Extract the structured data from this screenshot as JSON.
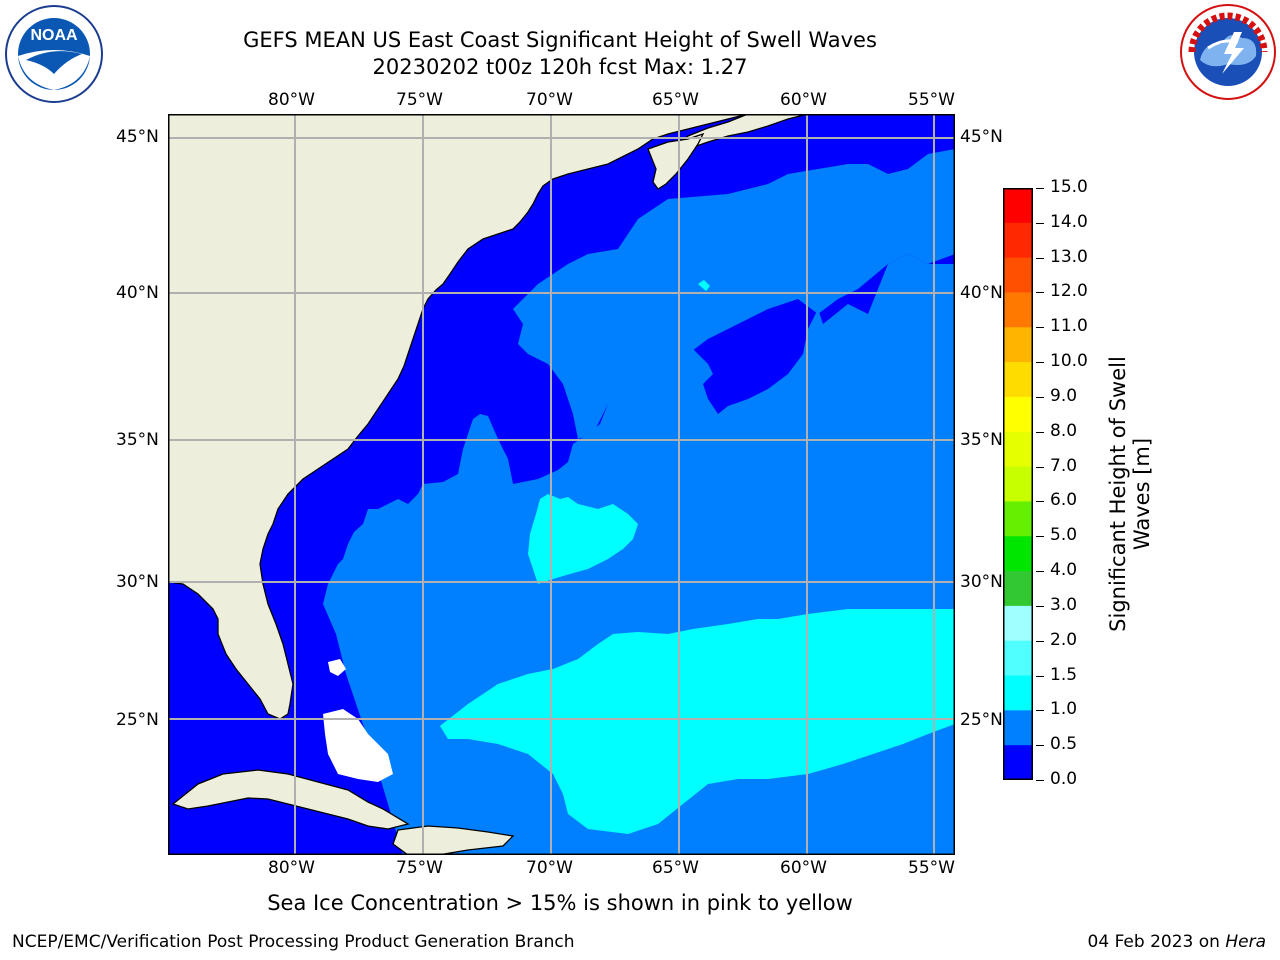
{
  "header": {
    "title_line1": "GEFS MEAN US East Coast Significant Height of Swell Waves",
    "title_line2": "20230202 t00z 120h fcst   Max: 1.27"
  },
  "logos": {
    "left": {
      "name": "noaa-logo",
      "text": "NOAA",
      "ring_text": "NATIONAL OCEANIC AND ATMOSPHERIC ADMINISTRATION · U.S. DEPARTMENT OF COMMERCE"
    },
    "right": {
      "name": "nws-logo",
      "ring_text": "NATIONAL WEATHER SERVICE"
    }
  },
  "map": {
    "lon_labels": [
      "80°W",
      "75°W",
      "70°W",
      "65°W",
      "60°W",
      "55°W"
    ],
    "lat_labels": [
      "45°N",
      "40°N",
      "35°N",
      "30°N",
      "25°N"
    ],
    "colors": {
      "land": "#eeeedd",
      "ocean_0_05": "#0000ff",
      "ocean_05_10": "#0080ff",
      "ocean_10_15": "#00ffff",
      "grid": "#b0b0b0",
      "coast": "#000000"
    }
  },
  "colorbar": {
    "title_line1": "Significant Height of Swell",
    "title_line2": "Waves [m]",
    "levels": [
      "15.0",
      "14.0",
      "13.0",
      "12.0",
      "11.0",
      "10.0",
      "9.0",
      "8.0",
      "7.0",
      "6.0",
      "5.0",
      "4.0",
      "3.0",
      "2.0",
      "1.5",
      "1.0",
      "0.5",
      "0.0"
    ],
    "colors_top_to_bottom": [
      "#ff0000",
      "#ff2800",
      "#ff5000",
      "#ff7800",
      "#ff9600",
      "#ffb400",
      "#ffdc00",
      "#ffff00",
      "#e6ff00",
      "#c8ff00",
      "#64f000",
      "#00e600",
      "#32c832",
      "#64f08c",
      "#a0ffff",
      "#50ffff",
      "#00ffff",
      "#0080ff",
      "#0000ff"
    ]
  },
  "notes": {
    "sea_ice": "Sea Ice Concentration > 15% is shown in pink to yellow"
  },
  "footer": {
    "left": "NCEP/EMC/Verification Post Processing Product Generation Branch",
    "right_prefix": "04 Feb 2023 on ",
    "right_host": "Hera"
  }
}
